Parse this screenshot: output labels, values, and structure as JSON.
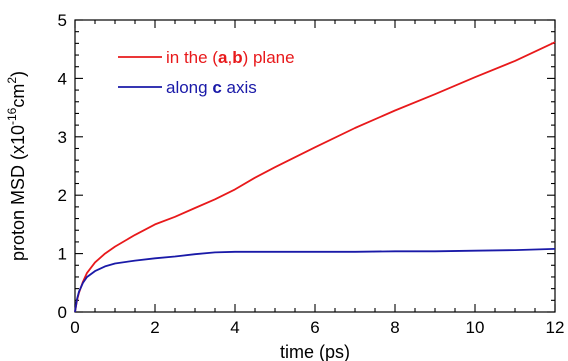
{
  "chart_data": {
    "type": "line",
    "xlabel": "time (ps)",
    "ylabel": {
      "prefix": "proton MSD (x10",
      "exp1": "-16",
      "mid": "cm",
      "exp2": "2",
      "suffix": ")"
    },
    "xlim": [
      0,
      12
    ],
    "ylim": [
      0,
      5
    ],
    "xticks": [
      "0",
      "2",
      "4",
      "6",
      "8",
      "10",
      "12"
    ],
    "yticks": [
      "0",
      "1",
      "2",
      "3",
      "4",
      "5"
    ],
    "grid": false,
    "legend_position": "top-left",
    "series": [
      {
        "color": "#e8191b",
        "legend": {
          "pre": "in the (",
          "b1": "a",
          "mid": ",",
          "b2": "b",
          "post": ") plane"
        },
        "x": [
          0,
          0.05,
          0.1,
          0.2,
          0.3,
          0.5,
          0.75,
          1.0,
          1.5,
          2.0,
          2.5,
          3.0,
          3.5,
          4.0,
          4.5,
          5.0,
          6.0,
          7.0,
          8.0,
          9.0,
          10.0,
          11.0,
          12.0
        ],
        "y": [
          0,
          0.2,
          0.33,
          0.52,
          0.67,
          0.85,
          1.0,
          1.12,
          1.32,
          1.5,
          1.63,
          1.78,
          1.93,
          2.1,
          2.3,
          2.48,
          2.82,
          3.15,
          3.45,
          3.73,
          4.02,
          4.3,
          4.62
        ]
      },
      {
        "color": "#1a1aa8",
        "legend": {
          "pre": "along ",
          "b1": "c",
          "post": " axis"
        },
        "x": [
          0,
          0.05,
          0.1,
          0.2,
          0.3,
          0.5,
          0.75,
          1.0,
          1.5,
          2.0,
          2.5,
          3.0,
          3.5,
          4.0,
          4.5,
          5.0,
          6.0,
          7.0,
          8.0,
          9.0,
          10.0,
          11.0,
          12.0
        ],
        "y": [
          0,
          0.22,
          0.35,
          0.5,
          0.6,
          0.7,
          0.78,
          0.83,
          0.88,
          0.92,
          0.95,
          0.99,
          1.02,
          1.03,
          1.03,
          1.03,
          1.03,
          1.03,
          1.04,
          1.04,
          1.05,
          1.06,
          1.08
        ]
      }
    ]
  }
}
